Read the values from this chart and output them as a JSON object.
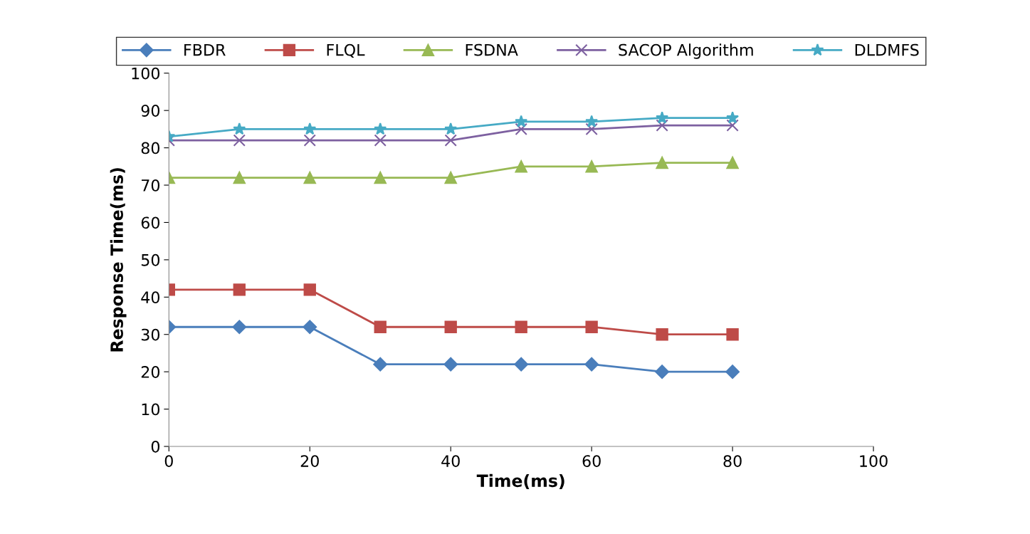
{
  "chart_data": {
    "type": "line",
    "xlabel": "Time(ms)",
    "ylabel": "Response Time(ms)",
    "x": [
      0,
      10,
      20,
      30,
      40,
      50,
      60,
      70,
      80
    ],
    "xlim": [
      0,
      100
    ],
    "xticks": [
      0,
      20,
      40,
      60,
      80,
      100
    ],
    "ylim": [
      0,
      100
    ],
    "yticks": [
      0,
      10,
      20,
      30,
      40,
      50,
      60,
      70,
      80,
      90,
      100
    ],
    "grid": false,
    "legend": "top",
    "series": [
      {
        "name": "FBDR",
        "color": "#4a7ebb",
        "marker": "diamond",
        "values": [
          32,
          32,
          32,
          22,
          22,
          22,
          22,
          20,
          20
        ]
      },
      {
        "name": "FLQL",
        "color": "#be4b48",
        "marker": "square",
        "values": [
          42,
          42,
          42,
          32,
          32,
          32,
          32,
          30,
          30
        ]
      },
      {
        "name": "FSDNA",
        "color": "#98b954",
        "marker": "triangle",
        "values": [
          72,
          72,
          72,
          72,
          72,
          75,
          75,
          76,
          76
        ]
      },
      {
        "name": "SACOP Algorithm",
        "color": "#7d60a0",
        "marker": "cross",
        "values": [
          82,
          82,
          82,
          82,
          82,
          85,
          85,
          86,
          86
        ]
      },
      {
        "name": "DLDMFS",
        "color": "#46aac5",
        "marker": "star",
        "values": [
          83,
          85,
          85,
          85,
          85,
          87,
          87,
          88,
          88
        ]
      }
    ]
  }
}
